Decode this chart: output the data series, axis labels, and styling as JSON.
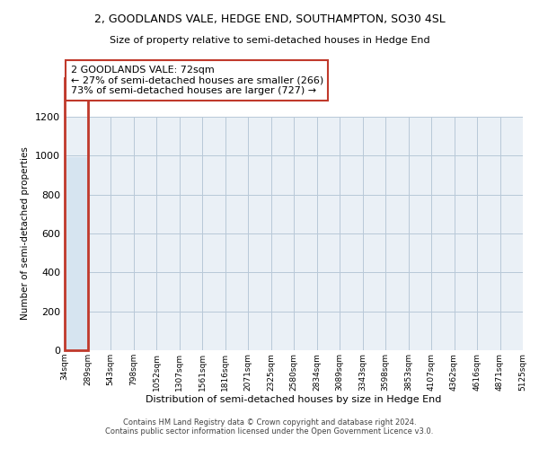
{
  "title": "2, GOODLANDS VALE, HEDGE END, SOUTHAMPTON, SO30 4SL",
  "subtitle": "Size of property relative to semi-detached houses in Hedge End",
  "xlabel": "Distribution of semi-detached houses by size in Hedge End",
  "ylabel": "Number of semi-detached properties",
  "bin_labels": [
    "34sqm",
    "289sqm",
    "543sqm",
    "798sqm",
    "1052sqm",
    "1307sqm",
    "1561sqm",
    "1816sqm",
    "2071sqm",
    "2325sqm",
    "2580sqm",
    "2834sqm",
    "3089sqm",
    "3343sqm",
    "3598sqm",
    "3853sqm",
    "4107sqm",
    "4362sqm",
    "4616sqm",
    "4871sqm",
    "5125sqm"
  ],
  "bar_values": [
    993,
    0,
    0,
    0,
    0,
    0,
    0,
    0,
    0,
    0,
    0,
    0,
    0,
    0,
    0,
    0,
    0,
    0,
    0,
    0
  ],
  "bar_color": "#d6e4f0",
  "highlight_bin_index": 0,
  "highlight_color": "#c0392b",
  "ylim": [
    0,
    1200
  ],
  "yticks": [
    0,
    200,
    400,
    600,
    800,
    1000,
    1200
  ],
  "annotation_text": "2 GOODLANDS VALE: 72sqm\n← 27% of semi-detached houses are smaller (266)\n73% of semi-detached houses are larger (727) →",
  "footer_line1": "Contains HM Land Registry data © Crown copyright and database right 2024.",
  "footer_line2": "Contains public sector information licensed under the Open Government Licence v3.0.",
  "ax_background": "#eaf0f6",
  "grid_color": "#b8c8d8",
  "title_fontsize": 9,
  "subtitle_fontsize": 8
}
